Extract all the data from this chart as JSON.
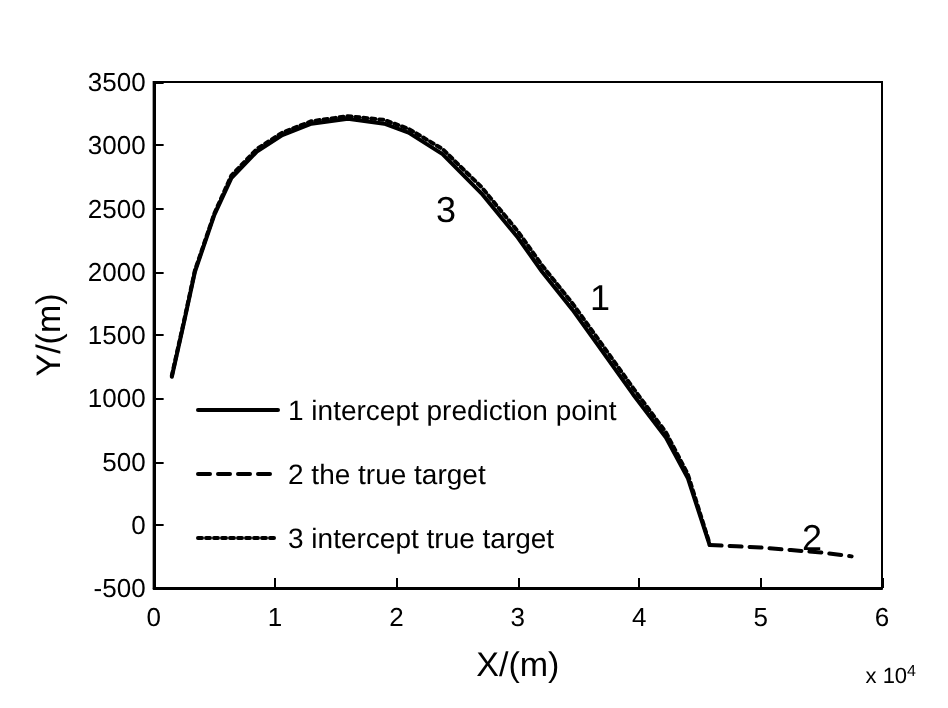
{
  "chart_data": {
    "type": "line",
    "xlabel": "X/(m)",
    "ylabel": "Y/(m)",
    "xlim": [
      0,
      6
    ],
    "xticks": [
      0,
      1,
      2,
      3,
      4,
      5,
      6
    ],
    "ylim": [
      -500,
      3500
    ],
    "yticks": [
      -500,
      0,
      500,
      1000,
      1500,
      2000,
      2500,
      3000,
      3500
    ],
    "grid": false,
    "legend": "left",
    "marker": "none",
    "series": [
      {
        "name": "1 intercept prediction point",
        "color": "#000000",
        "line_style": "solid",
        "x": [
          0.15,
          0.25,
          0.34,
          0.5,
          0.64,
          0.85,
          1.06,
          1.3,
          1.6,
          1.9,
          2.1,
          2.38,
          2.7,
          3.0,
          3.2,
          3.45,
          3.66,
          3.95,
          4.22,
          4.4,
          4.58
        ],
        "values": [
          1170,
          1600,
          2000,
          2450,
          2740,
          2950,
          3080,
          3170,
          3210,
          3170,
          3100,
          2930,
          2620,
          2270,
          2000,
          1700,
          1420,
          1030,
          690,
          370,
          -160
        ]
      },
      {
        "name": "2 the true target",
        "color": "#000000",
        "line_style": "dashed",
        "x": [
          4.58,
          4.8,
          5.0,
          5.25,
          5.5,
          5.75
        ],
        "values": [
          -160,
          -170,
          -180,
          -200,
          -220,
          -250
        ]
      },
      {
        "name": "3 intercept true target",
        "color": "#000000",
        "line_style": "dotted",
        "x": [
          0.15,
          0.25,
          0.34,
          0.5,
          0.64,
          0.85,
          1.06,
          1.3,
          1.6,
          1.9,
          2.1,
          2.38,
          2.7,
          3.0,
          3.2,
          3.45,
          3.66,
          3.95,
          4.22,
          4.4,
          4.58
        ],
        "values": [
          1180,
          1610,
          2010,
          2460,
          2760,
          2970,
          3100,
          3190,
          3230,
          3200,
          3130,
          2970,
          2670,
          2320,
          2050,
          1750,
          1470,
          1080,
          730,
          400,
          -150
        ]
      }
    ],
    "annotations": [
      "1",
      "2",
      "3",
      "x 10$^{4}$"
    ]
  }
}
